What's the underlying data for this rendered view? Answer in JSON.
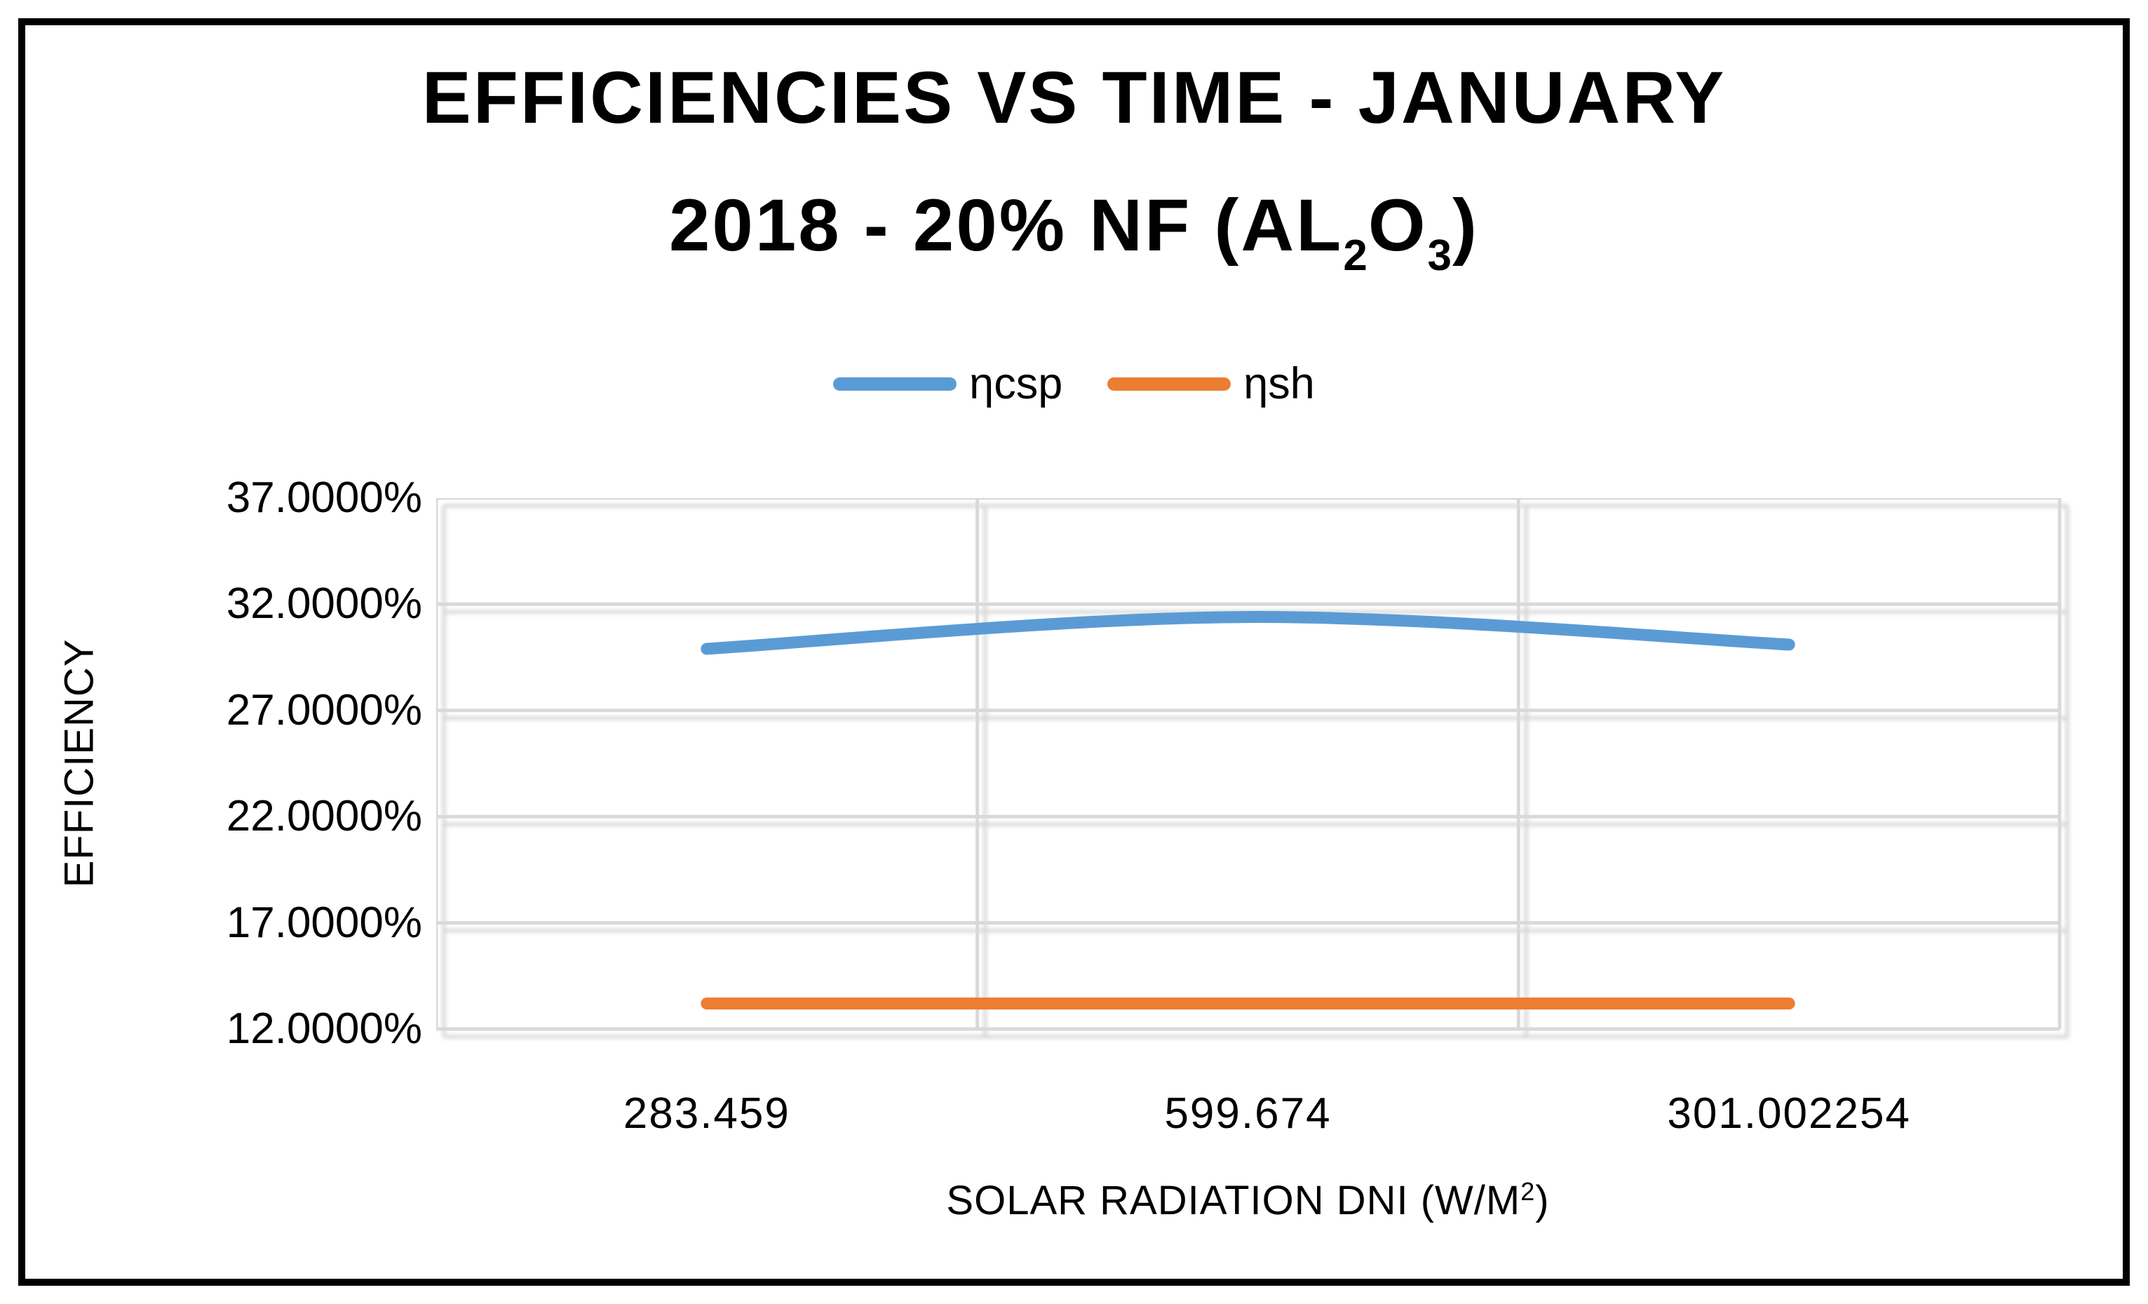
{
  "title": {
    "line1": "EFFICIENCIES VS TIME - JANUARY",
    "line2_prefix": "2018 - 20% NF (AL",
    "line2_sub1": "2",
    "line2_mid": "O",
    "line2_sub2": "3",
    "line2_suffix": ")"
  },
  "legend": {
    "items": [
      {
        "label": "ηcsp",
        "color": "#5B9BD5"
      },
      {
        "label": "ηsh",
        "color": "#ED7D31"
      }
    ]
  },
  "axes": {
    "y_title": "EFFICIENCY",
    "x_title_prefix": "SOLAR RADIATION DNI (W/M",
    "x_title_sup": "2",
    "x_title_suffix": ")",
    "y_tick_labels": [
      "37.0000%",
      "32.0000%",
      "27.0000%",
      "22.0000%",
      "17.0000%",
      "12.0000%"
    ],
    "x_tick_labels": [
      "283.459",
      "599.674",
      "301.002254"
    ]
  },
  "chart_data": {
    "type": "line",
    "title": "EFFICIENCIES VS TIME - JANUARY 2018 - 20% NF (AL2O3)",
    "categories": [
      "283.459",
      "599.674",
      "301.002254"
    ],
    "xlabel": "SOLAR RADIATION DNI (W/M²)",
    "ylabel": "EFFICIENCY",
    "ylim": [
      12,
      37
    ],
    "y_ticks_values": [
      37,
      32,
      27,
      22,
      17,
      12
    ],
    "y_tick_format": "0.0000%",
    "grid": true,
    "legend_position": "top",
    "gridline_color": "#D9D9D9",
    "series": [
      {
        "name": "ηcsp",
        "color": "#5B9BD5",
        "style": "smooth",
        "values_pct": [
          29.9,
          31.4,
          30.1
        ]
      },
      {
        "name": "ηsh",
        "color": "#ED7D31",
        "style": "straight",
        "values_pct": [
          13.2,
          13.2,
          13.2
        ]
      }
    ]
  }
}
